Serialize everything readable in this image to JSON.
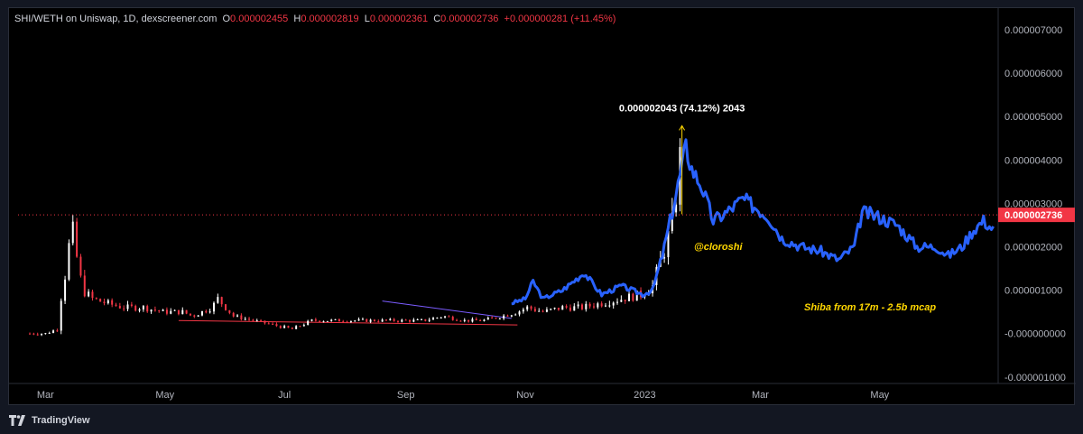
{
  "header": {
    "symbol": "SHI/WETH on Uniswap, 1D, dexscreener.com",
    "open_label": "O",
    "open_value": "0.000002455",
    "high_label": "H",
    "high_value": "0.000002819",
    "low_label": "L",
    "low_value": "0.000002361",
    "close_label": "C",
    "close_value": "0.000002736",
    "change_value": "+0.000000281 (+11.45%)"
  },
  "footer": {
    "brand": "TradingView",
    "logo_icon": "tradingview-logo-icon"
  },
  "colors": {
    "up": "#ffffff",
    "down": "#f23645",
    "blue": "#2962ff",
    "annotation": "#ffd700",
    "price_tag": "#f23645"
  },
  "chart_data": {
    "type": "candlestick",
    "y_axis_labels": [
      "0.000007000",
      "0.000006000",
      "0.000005000",
      "0.000004000",
      "0.000003000",
      "0.000002000",
      "0.000001000",
      "-0.000000000",
      "-0.000001000"
    ],
    "y_axis_values": [
      7e-06,
      6e-06,
      5e-06,
      4e-06,
      3e-06,
      2e-06,
      1e-06,
      0,
      -1e-06
    ],
    "ylim": [
      -1.15e-06,
      7.5e-06
    ],
    "x_axis_labels": [
      "Mar",
      "May",
      "Jul",
      "Sep",
      "Nov",
      "2023",
      "Mar",
      "May"
    ],
    "x_axis_dates": [
      "2022-03-01",
      "2022-05-01",
      "2022-07-01",
      "2022-09-01",
      "2022-11-01",
      "2023-01-01",
      "2023-03-01",
      "2023-05-01"
    ],
    "xlim": [
      "2022-02-15",
      "2023-06-30"
    ],
    "last_price": 2.736e-06,
    "last_price_label": "0.000002736",
    "peak_annotation": {
      "text": "0.000002043 (74.12%) 2043",
      "date": "2023-01-20",
      "from": 2.75e-06,
      "to": 4.79e-06
    },
    "watermark": "@cloroshi",
    "note": "Shiba from 17m - 2.5b mcap",
    "series": [
      {
        "style": "candles",
        "points": [
          [
            "2022-02-21",
            0.0
          ],
          [
            "2022-03-01",
            0.0
          ],
          [
            "2022-03-07",
            1e-07
          ],
          [
            "2022-03-10",
            1.2e-06
          ],
          [
            "2022-03-12",
            1.5e-06
          ],
          [
            "2022-03-13",
            2e-06
          ],
          [
            "2022-03-14",
            2.6e-06
          ],
          [
            "2022-03-16",
            2e-06
          ],
          [
            "2022-03-18",
            1.5e-06
          ],
          [
            "2022-03-20",
            1e-06
          ],
          [
            "2022-03-25",
            8e-07
          ],
          [
            "2022-04-01",
            7e-07
          ],
          [
            "2022-04-10",
            6e-07
          ],
          [
            "2022-04-20",
            6e-07
          ],
          [
            "2022-04-30",
            5e-07
          ],
          [
            "2022-05-10",
            5e-07
          ],
          [
            "2022-05-15",
            4e-07
          ],
          [
            "2022-05-20",
            5e-07
          ],
          [
            "2022-05-25",
            6e-07
          ],
          [
            "2022-05-28",
            8e-07
          ],
          [
            "2022-06-05",
            4e-07
          ],
          [
            "2022-06-15",
            3e-07
          ],
          [
            "2022-06-25",
            2e-07
          ],
          [
            "2022-07-05",
            1e-07
          ],
          [
            "2022-07-15",
            3e-07
          ],
          [
            "2022-07-25",
            3e-07
          ],
          [
            "2022-08-05",
            3e-07
          ],
          [
            "2022-08-15",
            3e-07
          ],
          [
            "2022-08-25",
            3e-07
          ],
          [
            "2022-09-01",
            3e-07
          ],
          [
            "2022-09-10",
            3e-07
          ],
          [
            "2022-09-20",
            4e-07
          ],
          [
            "2022-10-01",
            3e-07
          ],
          [
            "2022-10-10",
            3e-07
          ],
          [
            "2022-10-20",
            4e-07
          ],
          [
            "2022-10-28",
            5e-07
          ],
          [
            "2022-11-02",
            6e-07
          ],
          [
            "2022-11-10",
            5e-07
          ],
          [
            "2022-11-20",
            6e-07
          ],
          [
            "2022-11-30",
            6e-07
          ],
          [
            "2022-12-10",
            7e-07
          ],
          [
            "2022-12-20",
            8e-07
          ],
          [
            "2022-12-30",
            9e-07
          ],
          [
            "2023-01-05",
            1.1e-06
          ],
          [
            "2023-01-10",
            1.8e-06
          ],
          [
            "2023-01-15",
            2.5e-06
          ],
          [
            "2023-01-18",
            3.6e-06
          ],
          [
            "2023-01-20",
            4.4e-06
          ]
        ]
      },
      {
        "style": "blue-line",
        "points": [
          [
            "2022-10-25",
            7e-07
          ],
          [
            "2022-11-01",
            8e-07
          ],
          [
            "2022-11-05",
            1.2e-06
          ],
          [
            "2022-11-10",
            8e-07
          ],
          [
            "2022-11-20",
            1e-06
          ],
          [
            "2022-12-01",
            1.4e-06
          ],
          [
            "2022-12-10",
            9e-07
          ],
          [
            "2022-12-20",
            1.1e-06
          ],
          [
            "2022-12-31",
            9e-07
          ],
          [
            "2023-01-05",
            1e-06
          ],
          [
            "2023-01-10",
            1.8e-06
          ],
          [
            "2023-01-16",
            3e-06
          ],
          [
            "2023-01-22",
            4.3e-06
          ],
          [
            "2023-01-25",
            3.8e-06
          ],
          [
            "2023-01-30",
            3.4e-06
          ],
          [
            "2023-02-05",
            2.6e-06
          ],
          [
            "2023-02-12",
            2.8e-06
          ],
          [
            "2023-02-20",
            3.1e-06
          ],
          [
            "2023-02-27",
            2.9e-06
          ],
          [
            "2023-03-05",
            2.7e-06
          ],
          [
            "2023-03-12",
            2.2e-06
          ],
          [
            "2023-03-22",
            2e-06
          ],
          [
            "2023-04-01",
            1.9e-06
          ],
          [
            "2023-04-10",
            1.7e-06
          ],
          [
            "2023-04-18",
            2e-06
          ],
          [
            "2023-04-22",
            2.8e-06
          ],
          [
            "2023-04-30",
            2.7e-06
          ],
          [
            "2023-05-10",
            2.5e-06
          ],
          [
            "2023-05-20",
            2e-06
          ],
          [
            "2023-05-30",
            2e-06
          ],
          [
            "2023-06-05",
            1.8e-06
          ],
          [
            "2023-06-12",
            2e-06
          ],
          [
            "2023-06-18",
            2.4e-06
          ],
          [
            "2023-06-23",
            2.6e-06
          ],
          [
            "2023-06-28",
            2.4e-06
          ]
        ]
      }
    ]
  }
}
